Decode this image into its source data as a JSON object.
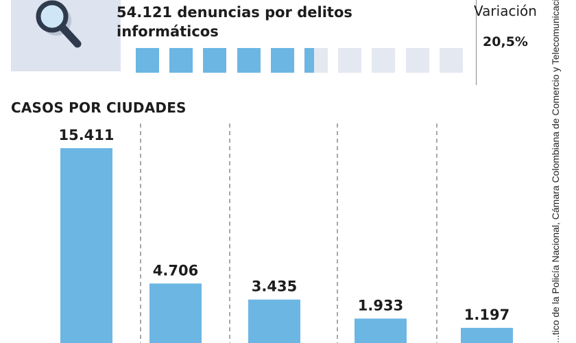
{
  "header": {
    "headline": "54.121 denuncias por delitos informáticos",
    "icon": "magnifying-glass-icon",
    "progress_fraction": 0.54,
    "progress_segments": 10,
    "variation_label": "Variación",
    "variation_value": "20,5%"
  },
  "section_title": "CASOS POR CIUDADES",
  "source_text": "...tico de la Policía Nacional, Cámara Colombiana de Comercio y Telecomunicaciones, Fortinet, NCS / Gráf...",
  "colors": {
    "bar": "#6cb6e4",
    "track": "#e4e8f1",
    "icon_bg": "#dde3ef"
  },
  "chart_data": {
    "type": "bar",
    "title": "CASOS POR CIUDADES",
    "categories": [
      "",
      "",
      "",
      "",
      ""
    ],
    "values": [
      15411,
      4706,
      3435,
      1933,
      1197
    ],
    "labels": [
      "15.411",
      "4.706",
      "3.435",
      "1.933",
      "1.197"
    ],
    "ylim": [
      0,
      15411
    ],
    "grid": false,
    "separators": "dashed-vertical"
  }
}
